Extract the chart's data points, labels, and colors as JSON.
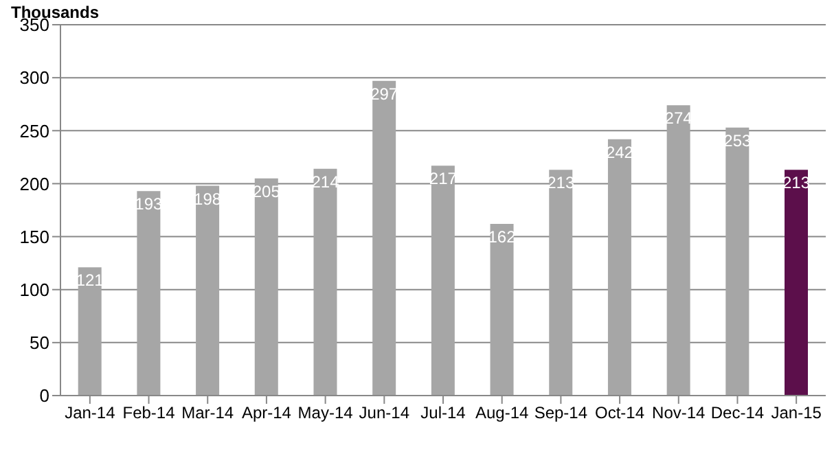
{
  "chart_data": {
    "type": "bar",
    "ylabel": "Thousands",
    "categories": [
      "Jan-14",
      "Feb-14",
      "Mar-14",
      "Apr-14",
      "May-14",
      "Jun-14",
      "Jul-14",
      "Aug-14",
      "Sep-14",
      "Oct-14",
      "Nov-14",
      "Dec-14",
      "Jan-15"
    ],
    "values": [
      121,
      193,
      198,
      205,
      214,
      297,
      217,
      162,
      213,
      242,
      274,
      253,
      213
    ],
    "colors": [
      "#a6a6a6",
      "#a6a6a6",
      "#a6a6a6",
      "#a6a6a6",
      "#a6a6a6",
      "#a6a6a6",
      "#a6a6a6",
      "#a6a6a6",
      "#a6a6a6",
      "#a6a6a6",
      "#a6a6a6",
      "#a6a6a6",
      "#5c0f4b"
    ],
    "ylim": [
      0,
      350
    ],
    "yticks": [
      0,
      50,
      100,
      150,
      200,
      250,
      300,
      350
    ],
    "grid": "y",
    "data_labels": true,
    "legend": false
  }
}
